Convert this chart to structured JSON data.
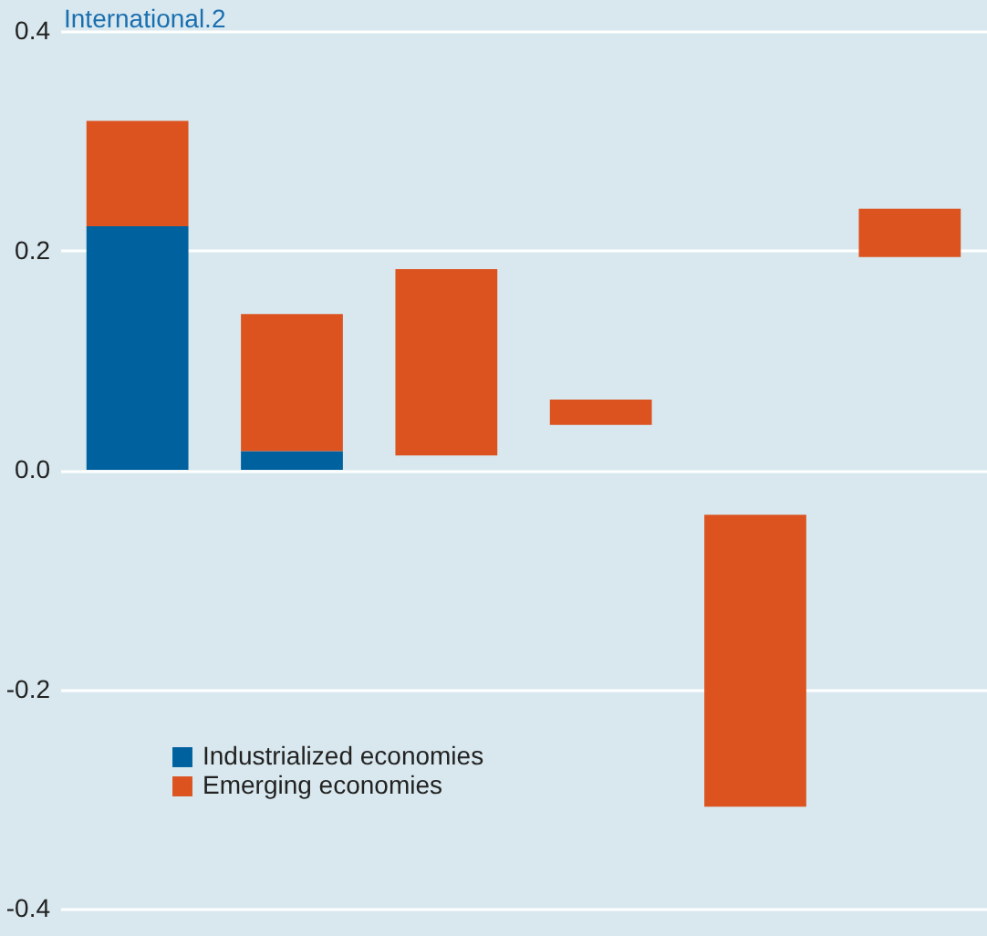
{
  "chart_data": {
    "type": "bar",
    "title": "International.2",
    "categories": [
      null,
      null,
      null,
      null,
      null,
      null
    ],
    "series": [
      {
        "name": "Industrialized economies",
        "color": "#00619f",
        "values": [
          0.222,
          0.017,
          null,
          null,
          null,
          null
        ]
      },
      {
        "name": "Emerging economies",
        "color": "#dc5320",
        "base": [
          0.222,
          0.017,
          0.013,
          0.041,
          -0.041,
          0.194
        ],
        "values": [
          0.096,
          0.125,
          0.17,
          0.023,
          -0.266,
          0.044
        ]
      }
    ],
    "ylim": [
      -0.4,
      0.4
    ],
    "yticks": [
      -0.4,
      -0.2,
      {
        "value": 0,
        "label": "0.0"
      },
      0.2,
      0.4
    ],
    "grid": "y",
    "legend": "bottom left"
  }
}
